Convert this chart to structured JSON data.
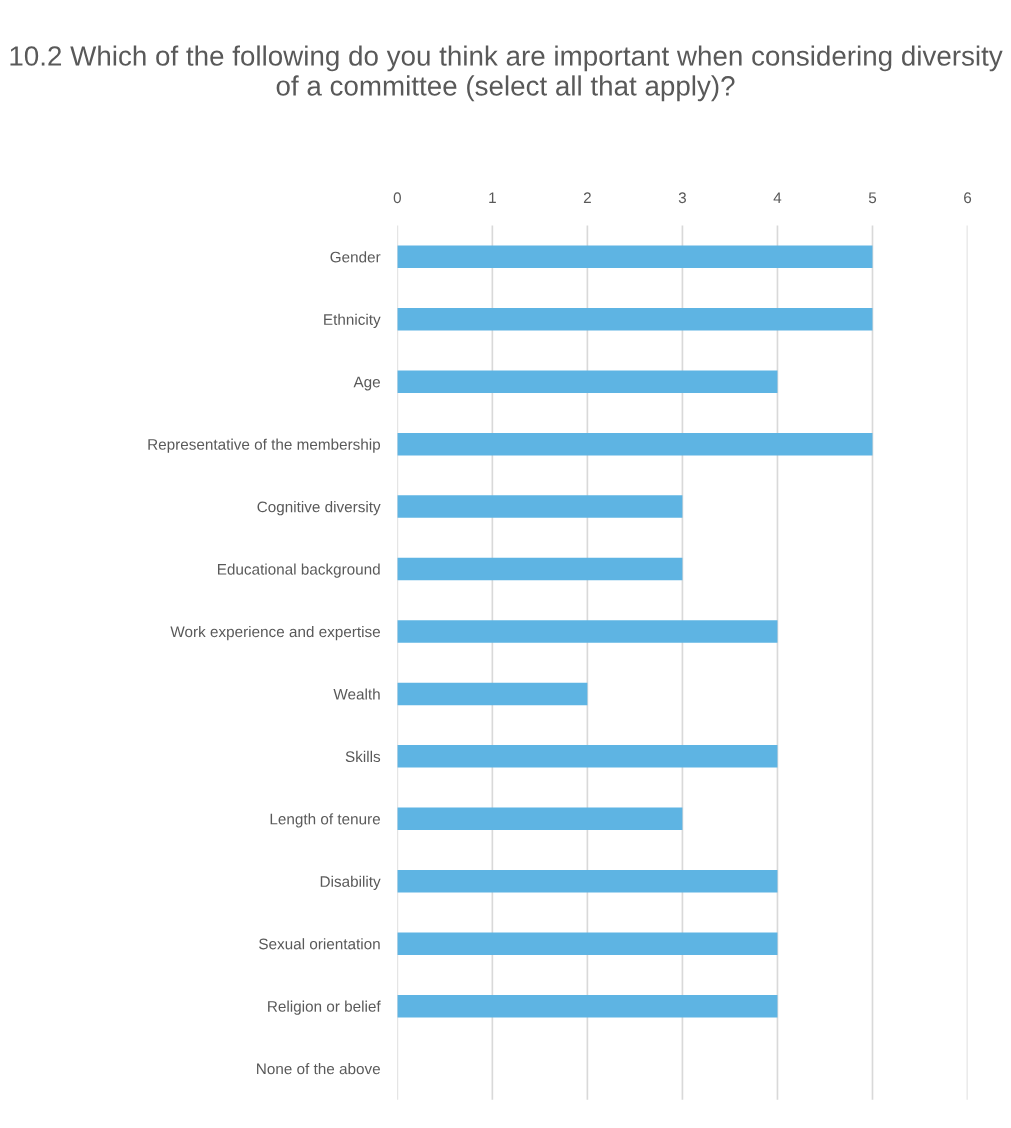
{
  "chart_data": {
    "type": "bar",
    "orientation": "horizontal",
    "title": "10.2 Which of the following do you think are important when considering diversity of a committee (select all that apply)?",
    "categories": [
      "Gender",
      "Ethnicity",
      "Age",
      "Representative of the membership",
      "Cognitive diversity",
      "Educational background",
      "Work experience and expertise",
      "Wealth",
      "Skills",
      "Length of tenure",
      "Disability",
      "Sexual orientation",
      "Religion or belief",
      "None of the above"
    ],
    "values": [
      5,
      5,
      4,
      5,
      3,
      3,
      4,
      2,
      4,
      3,
      4,
      4,
      4,
      0
    ],
    "color": "#5eb4e3",
    "xlim": [
      0,
      6
    ],
    "xticks": [
      0,
      1,
      2,
      3,
      4,
      5,
      6
    ],
    "grid": "x",
    "legend": false
  }
}
